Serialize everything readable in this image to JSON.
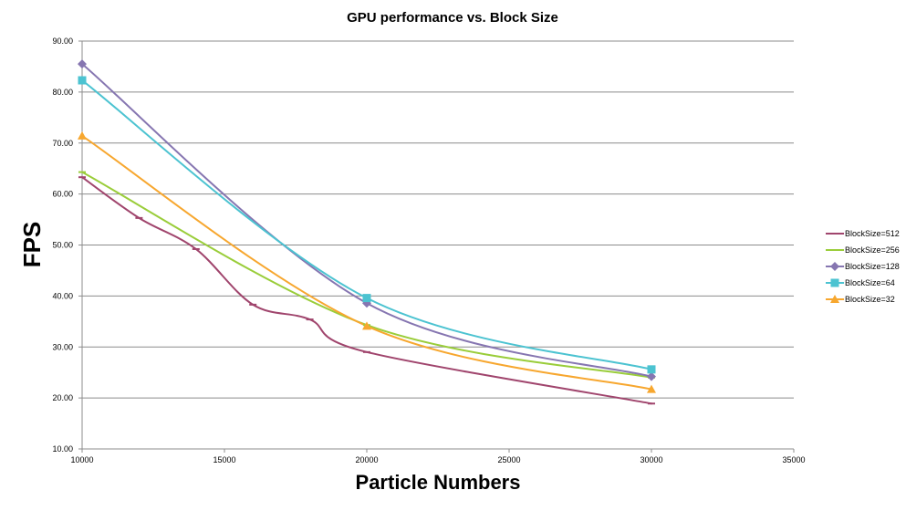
{
  "chart_data": {
    "type": "line",
    "title": "GPU performance vs. Block Size",
    "xlabel": "Particle Numbers",
    "ylabel": "FPS",
    "xlim": [
      10000,
      35000
    ],
    "ylim": [
      10,
      90
    ],
    "x_ticks": [
      "10000",
      "15000",
      "20000",
      "25000",
      "30000",
      "35000"
    ],
    "y_ticks": [
      "10.00",
      "20.00",
      "30.00",
      "40.00",
      "50.00",
      "60.00",
      "70.00",
      "80.00",
      "90.00"
    ],
    "grid": "horizontal",
    "legend_position": "right",
    "series": [
      {
        "name": "BlockSize=512",
        "color": "#A0456D",
        "marker": "dash",
        "x": [
          10000,
          12000,
          14000,
          16000,
          18000,
          20000,
          30000
        ],
        "y": [
          63.3,
          55.3,
          49.2,
          38.3,
          35.4,
          29.0,
          18.9
        ]
      },
      {
        "name": "BlockSize=256",
        "color": "#9ACD3A",
        "marker": "dash",
        "x": [
          10000,
          20000,
          30000
        ],
        "y": [
          64.3,
          34.3,
          24.0
        ]
      },
      {
        "name": "BlockSize=128",
        "color": "#8676B1",
        "marker": "diamond",
        "x": [
          10000,
          20000,
          30000
        ],
        "y": [
          85.5,
          38.6,
          24.2
        ]
      },
      {
        "name": "BlockSize=64",
        "color": "#4CC3D1",
        "marker": "square",
        "x": [
          10000,
          20000,
          30000
        ],
        "y": [
          82.3,
          39.6,
          25.6
        ]
      },
      {
        "name": "BlockSize=32",
        "color": "#F7A72F",
        "marker": "triangle",
        "x": [
          10000,
          20000,
          30000
        ],
        "y": [
          71.4,
          34.1,
          21.7
        ]
      }
    ]
  }
}
